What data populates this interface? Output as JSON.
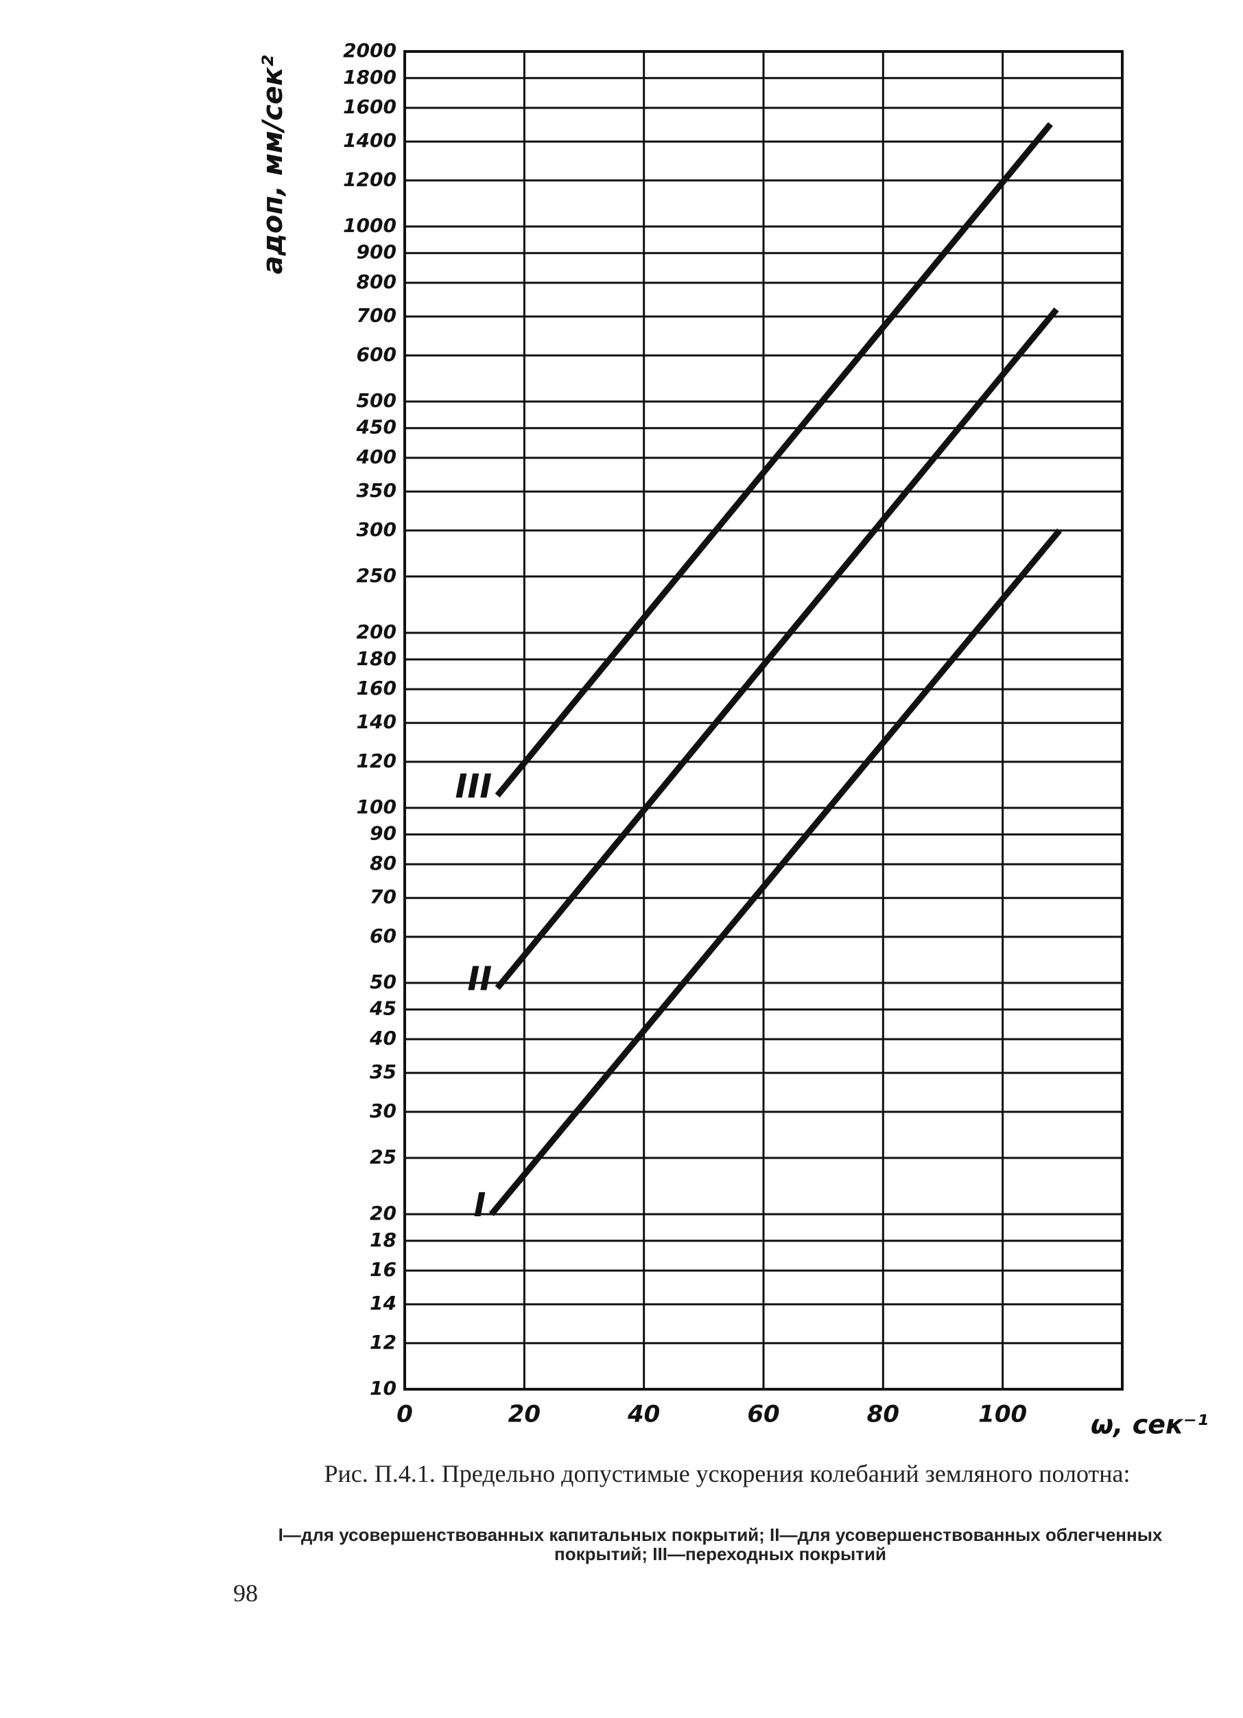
{
  "chart_data": {
    "type": "line",
    "title": "Рис. П.4.1. Предельно допустимые ускорения колебаний земляного полотна:",
    "subtitle": "I—для усовершенствованных капитальных покрытий; II—для усовершенствованных облегченных покрытий; III—переходных покрытий",
    "y_label": "aдоп, мм/сек²",
    "x_label": "ω, сек⁻¹",
    "xlim": [
      0,
      120
    ],
    "xticks": [
      0,
      20,
      40,
      60,
      80,
      100
    ],
    "ylim": [
      10,
      2000
    ],
    "yticks": [
      2000,
      1800,
      1600,
      1400,
      1200,
      1000,
      900,
      800,
      700,
      600,
      500,
      450,
      400,
      350,
      300,
      250,
      200,
      180,
      160,
      140,
      120,
      100,
      90,
      80,
      70,
      60,
      50,
      45,
      40,
      35,
      30,
      25,
      20,
      18,
      16,
      14,
      12,
      10
    ],
    "log_y": true,
    "grid": true,
    "series": [
      {
        "name": "I",
        "color": "#111111",
        "x": [
          14.5,
          109.5
        ],
        "values": [
          20,
          300
        ]
      },
      {
        "name": "II",
        "color": "#111111",
        "x": [
          15.5,
          109
        ],
        "values": [
          49,
          720
        ]
      },
      {
        "name": "III",
        "color": "#111111",
        "x": [
          15.5,
          108
        ],
        "values": [
          105,
          1500
        ]
      }
    ]
  },
  "page_number": "98"
}
